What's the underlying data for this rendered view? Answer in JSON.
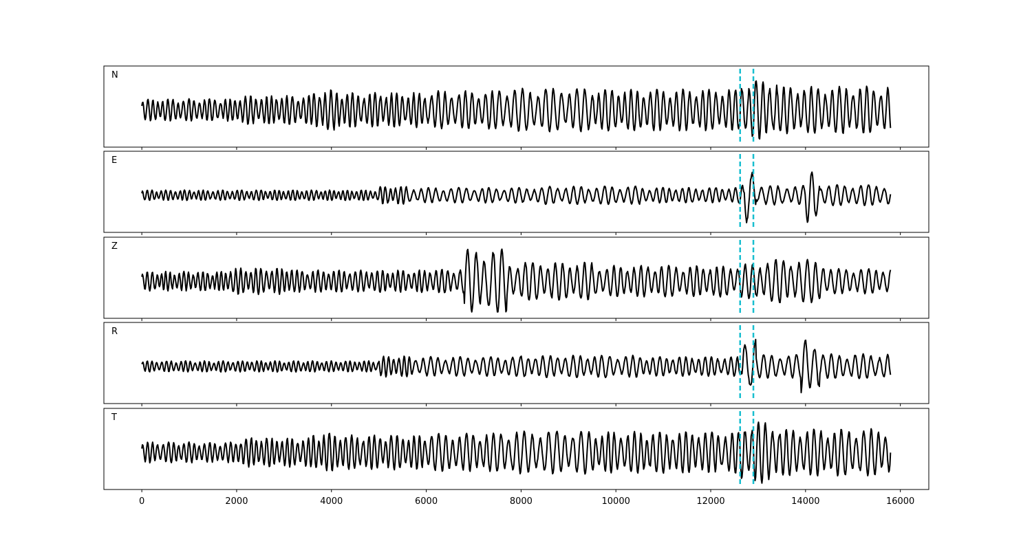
{
  "chart_data": {
    "type": "line",
    "x_range": [
      0,
      15800
    ],
    "xlim": [
      -800,
      16600
    ],
    "x_ticks": [
      0,
      2000,
      4000,
      6000,
      8000,
      10000,
      12000,
      14000,
      16000
    ],
    "x_tick_labels": [
      "0",
      "2000",
      "4000",
      "6000",
      "8000",
      "10000",
      "12000",
      "14000",
      "16000"
    ],
    "grid": false,
    "picks": [
      12620,
      12900
    ],
    "pick_color": "#17becf",
    "trace_color": "#000000",
    "panels": [
      {
        "label": "N",
        "segments": [
          {
            "x0": 0,
            "x1": 2000,
            "amp": 0.32,
            "period": 110
          },
          {
            "x0": 2000,
            "x1": 3600,
            "amp": 0.42,
            "period": 115
          },
          {
            "x0": 3600,
            "x1": 4200,
            "amp": 0.58,
            "period": 120
          },
          {
            "x0": 4200,
            "x1": 6000,
            "amp": 0.5,
            "period": 120
          },
          {
            "x0": 6000,
            "x1": 7500,
            "amp": 0.55,
            "period": 150
          },
          {
            "x0": 7500,
            "x1": 9500,
            "amp": 0.62,
            "period": 170
          },
          {
            "x0": 9500,
            "x1": 12600,
            "amp": 0.6,
            "period": 140
          },
          {
            "x0": 12600,
            "x1": 13400,
            "amp": 0.85,
            "period": 150
          },
          {
            "x0": 13400,
            "x1": 15800,
            "amp": 0.68,
            "period": 150
          }
        ]
      },
      {
        "label": "E",
        "segments": [
          {
            "x0": 0,
            "x1": 5000,
            "amp": 0.15,
            "period": 100
          },
          {
            "x0": 5000,
            "x1": 5600,
            "amp": 0.26,
            "period": 110
          },
          {
            "x0": 5600,
            "x1": 8500,
            "amp": 0.22,
            "period": 160
          },
          {
            "x0": 8500,
            "x1": 10500,
            "amp": 0.26,
            "period": 170
          },
          {
            "x0": 10500,
            "x1": 12600,
            "amp": 0.22,
            "period": 140
          },
          {
            "x0": 12600,
            "x1": 12700,
            "amp": 0.3,
            "period": 150
          },
          {
            "x0": 12700,
            "x1": 12950,
            "amp": 0.88,
            "period": 230
          },
          {
            "x0": 12950,
            "x1": 14000,
            "amp": 0.28,
            "period": 180
          },
          {
            "x0": 14000,
            "x1": 14300,
            "amp": 0.78,
            "period": 200
          },
          {
            "x0": 14300,
            "x1": 15800,
            "amp": 0.3,
            "period": 170
          }
        ]
      },
      {
        "label": "Z",
        "segments": [
          {
            "x0": 0,
            "x1": 1800,
            "amp": 0.28,
            "period": 100
          },
          {
            "x0": 1800,
            "x1": 3200,
            "amp": 0.38,
            "period": 110
          },
          {
            "x0": 3200,
            "x1": 6000,
            "amp": 0.32,
            "period": 115
          },
          {
            "x0": 6000,
            "x1": 6800,
            "amp": 0.35,
            "period": 130
          },
          {
            "x0": 6800,
            "x1": 7700,
            "amp": 0.92,
            "period": 180
          },
          {
            "x0": 7700,
            "x1": 9500,
            "amp": 0.55,
            "period": 160
          },
          {
            "x0": 9500,
            "x1": 12600,
            "amp": 0.45,
            "period": 150
          },
          {
            "x0": 12600,
            "x1": 13100,
            "amp": 0.5,
            "period": 160
          },
          {
            "x0": 13100,
            "x1": 14400,
            "amp": 0.62,
            "period": 170
          },
          {
            "x0": 14400,
            "x1": 15800,
            "amp": 0.36,
            "period": 160
          }
        ]
      },
      {
        "label": "R",
        "segments": [
          {
            "x0": 0,
            "x1": 5000,
            "amp": 0.16,
            "period": 100
          },
          {
            "x0": 5000,
            "x1": 5700,
            "amp": 0.3,
            "period": 110
          },
          {
            "x0": 5700,
            "x1": 8000,
            "amp": 0.28,
            "period": 160
          },
          {
            "x0": 8000,
            "x1": 10500,
            "amp": 0.32,
            "period": 160
          },
          {
            "x0": 10500,
            "x1": 12650,
            "amp": 0.28,
            "period": 140
          },
          {
            "x0": 12650,
            "x1": 12950,
            "amp": 0.92,
            "period": 220
          },
          {
            "x0": 12950,
            "x1": 13900,
            "amp": 0.34,
            "period": 180
          },
          {
            "x0": 13900,
            "x1": 14300,
            "amp": 0.82,
            "period": 200
          },
          {
            "x0": 14300,
            "x1": 15800,
            "amp": 0.36,
            "period": 170
          }
        ]
      },
      {
        "label": "T",
        "segments": [
          {
            "x0": 0,
            "x1": 2000,
            "amp": 0.3,
            "period": 110
          },
          {
            "x0": 2000,
            "x1": 3600,
            "amp": 0.42,
            "period": 115
          },
          {
            "x0": 3600,
            "x1": 4200,
            "amp": 0.56,
            "period": 120
          },
          {
            "x0": 4200,
            "x1": 6000,
            "amp": 0.5,
            "period": 120
          },
          {
            "x0": 6000,
            "x1": 7500,
            "amp": 0.55,
            "period": 150
          },
          {
            "x0": 7500,
            "x1": 9500,
            "amp": 0.62,
            "period": 170
          },
          {
            "x0": 9500,
            "x1": 12600,
            "amp": 0.6,
            "period": 140
          },
          {
            "x0": 12600,
            "x1": 13400,
            "amp": 0.88,
            "period": 150
          },
          {
            "x0": 13400,
            "x1": 15800,
            "amp": 0.68,
            "period": 150
          }
        ]
      }
    ]
  }
}
